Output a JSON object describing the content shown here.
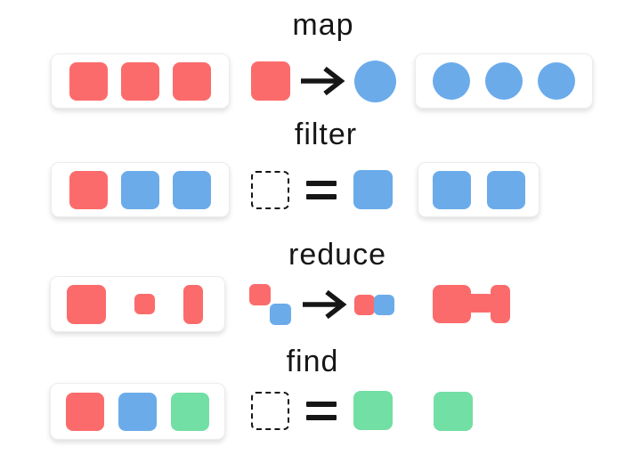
{
  "colors": {
    "red": "#fc6b6b",
    "blue": "#6babea",
    "green": "#72dfa4",
    "ink": "#161616",
    "box_background": "#ffffff",
    "box_border": "#ececec"
  },
  "rows": [
    {
      "label": "map",
      "input": [
        {
          "shape": "square",
          "color": "red"
        },
        {
          "shape": "square",
          "color": "red"
        },
        {
          "shape": "square",
          "color": "red"
        }
      ],
      "op_lhs": [
        {
          "shape": "square-lg",
          "color": "red"
        }
      ],
      "op_symbol": "arrow",
      "op_rhs": [
        {
          "shape": "circle-lg",
          "color": "blue"
        }
      ],
      "output": [
        {
          "shape": "circle",
          "color": "blue"
        },
        {
          "shape": "circle",
          "color": "blue"
        },
        {
          "shape": "circle",
          "color": "blue"
        }
      ]
    },
    {
      "label": "filter",
      "input": [
        {
          "shape": "square",
          "color": "red"
        },
        {
          "shape": "square",
          "color": "blue"
        },
        {
          "shape": "square",
          "color": "blue"
        }
      ],
      "op_lhs": [
        {
          "shape": "dashed-square"
        }
      ],
      "op_symbol": "equals",
      "op_rhs": [
        {
          "shape": "square-lg",
          "color": "blue"
        }
      ],
      "output": [
        {
          "shape": "square",
          "color": "blue"
        },
        {
          "shape": "square",
          "color": "blue"
        }
      ]
    },
    {
      "label": "reduce",
      "input": [
        {
          "shape": "square-lg",
          "color": "red"
        },
        {
          "shape": "square-sm",
          "color": "red"
        },
        {
          "shape": "rect-tall",
          "color": "red"
        }
      ],
      "op_lhs": [
        {
          "shape": "acc-diagonal",
          "colors": [
            "red",
            "blue"
          ]
        }
      ],
      "op_symbol": "arrow",
      "op_rhs": [
        {
          "shape": "acc-adjacent",
          "colors": [
            "red",
            "blue"
          ]
        }
      ],
      "output": [
        {
          "shape": "merged",
          "color": "red"
        }
      ]
    },
    {
      "label": "find",
      "input": [
        {
          "shape": "square",
          "color": "red"
        },
        {
          "shape": "square",
          "color": "blue"
        },
        {
          "shape": "square",
          "color": "green"
        }
      ],
      "op_lhs": [
        {
          "shape": "dashed-square"
        }
      ],
      "op_symbol": "equals",
      "op_rhs": [
        {
          "shape": "square-lg",
          "color": "green"
        }
      ],
      "output": [
        {
          "shape": "square-lg",
          "color": "green"
        }
      ]
    }
  ]
}
